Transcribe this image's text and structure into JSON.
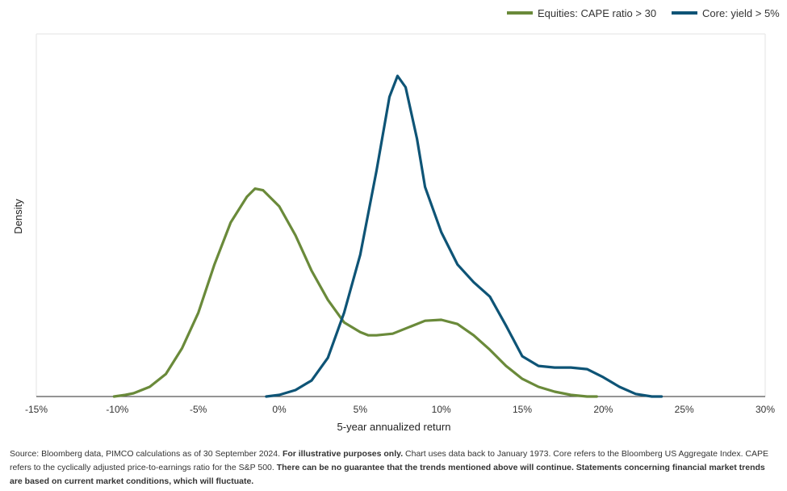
{
  "chart_data": {
    "type": "line",
    "xlabel": "5-year annualized return",
    "ylabel": "Density",
    "xlim": [
      -15,
      30
    ],
    "ylim": [
      0,
      1.0
    ],
    "x_ticks": [
      "-15%",
      "-10%",
      "-5%",
      "0%",
      "5%",
      "10%",
      "15%",
      "20%",
      "25%",
      "30%"
    ],
    "x_tick_values": [
      -15,
      -10,
      -5,
      0,
      5,
      10,
      15,
      20,
      25,
      30
    ],
    "grid": false,
    "legend_position": "top-right",
    "series": [
      {
        "name": "Equities: CAPE ratio > 30",
        "color": "#6a8a3a",
        "points": [
          [
            -10.2,
            0.0
          ],
          [
            -9.5,
            0.005
          ],
          [
            -9.0,
            0.01
          ],
          [
            -8.0,
            0.03
          ],
          [
            -7.0,
            0.07
          ],
          [
            -6.0,
            0.15
          ],
          [
            -5.0,
            0.26
          ],
          [
            -4.0,
            0.41
          ],
          [
            -3.0,
            0.54
          ],
          [
            -2.0,
            0.62
          ],
          [
            -1.5,
            0.645
          ],
          [
            -1.0,
            0.64
          ],
          [
            0.0,
            0.59
          ],
          [
            1.0,
            0.5
          ],
          [
            2.0,
            0.39
          ],
          [
            3.0,
            0.3
          ],
          [
            4.0,
            0.23
          ],
          [
            5.0,
            0.2
          ],
          [
            5.5,
            0.19
          ],
          [
            6.0,
            0.19
          ],
          [
            7.0,
            0.195
          ],
          [
            8.0,
            0.215
          ],
          [
            9.0,
            0.235
          ],
          [
            10.0,
            0.238
          ],
          [
            11.0,
            0.225
          ],
          [
            12.0,
            0.19
          ],
          [
            13.0,
            0.145
          ],
          [
            14.0,
            0.095
          ],
          [
            15.0,
            0.055
          ],
          [
            16.0,
            0.03
          ],
          [
            17.0,
            0.015
          ],
          [
            18.0,
            0.005
          ],
          [
            19.0,
            0.0
          ],
          [
            19.6,
            0.0
          ]
        ]
      },
      {
        "name": "Core: yield > 5%",
        "color": "#0e5476",
        "points": [
          [
            -0.8,
            0.0
          ],
          [
            0.0,
            0.005
          ],
          [
            1.0,
            0.02
          ],
          [
            2.0,
            0.05
          ],
          [
            3.0,
            0.12
          ],
          [
            4.0,
            0.26
          ],
          [
            5.0,
            0.44
          ],
          [
            6.0,
            0.7
          ],
          [
            6.8,
            0.93
          ],
          [
            7.3,
            0.995
          ],
          [
            7.8,
            0.96
          ],
          [
            8.5,
            0.8
          ],
          [
            9.0,
            0.65
          ],
          [
            10.0,
            0.51
          ],
          [
            11.0,
            0.41
          ],
          [
            12.0,
            0.355
          ],
          [
            13.0,
            0.31
          ],
          [
            14.0,
            0.22
          ],
          [
            15.0,
            0.125
          ],
          [
            16.0,
            0.095
          ],
          [
            17.0,
            0.09
          ],
          [
            18.0,
            0.09
          ],
          [
            19.0,
            0.085
          ],
          [
            20.0,
            0.06
          ],
          [
            21.0,
            0.03
          ],
          [
            22.0,
            0.008
          ],
          [
            23.0,
            0.0
          ],
          [
            23.6,
            0.0
          ]
        ]
      }
    ]
  },
  "footnote": {
    "p1": "Source: Bloomberg data, PIMCO calculations as of 30 September 2024. ",
    "b1": "For illustrative purposes only.",
    "p2": " Chart uses data back to January 1973. Core refers to the Bloomberg US Aggregate Index. CAPE refers to the cyclically adjusted price-to-earnings ratio for the S&P 500. ",
    "b2": "There can be no guarantee that the trends mentioned above will continue. Statements concerning financial market trends are based on current market conditions, which will fluctuate."
  }
}
